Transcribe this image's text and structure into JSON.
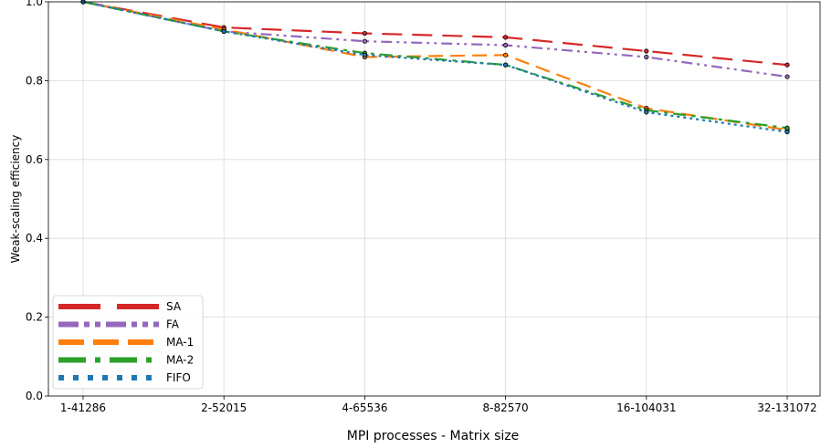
{
  "chart_data": {
    "type": "line",
    "title": "",
    "xlabel": "MPI processes - Matrix size",
    "ylabel": "Weak-scaling efficiency",
    "categories": [
      "1-41286",
      "2-52015",
      "4-65536",
      "8-82570",
      "16-104031",
      "32-131072"
    ],
    "yticks": [
      "0.0",
      "0.2",
      "0.4",
      "0.6",
      "0.8",
      "1.0"
    ],
    "ylim": [
      0,
      1.0
    ],
    "grid": true,
    "legend_position": "lower-left",
    "series": [
      {
        "name": "SA",
        "color": "#d62728",
        "dash": "long-dash",
        "values": [
          1.0,
          0.935,
          0.92,
          0.91,
          0.875,
          0.84
        ]
      },
      {
        "name": "FA",
        "color": "#9467bd",
        "dash": "dash-dot-dot",
        "values": [
          1.0,
          0.925,
          0.9,
          0.89,
          0.86,
          0.81
        ]
      },
      {
        "name": "MA-1",
        "color": "#ff7f0e",
        "dash": "dash",
        "values": [
          1.0,
          0.93,
          0.86,
          0.865,
          0.73,
          0.675
        ]
      },
      {
        "name": "MA-2",
        "color": "#2ca02c",
        "dash": "dash-dot",
        "values": [
          1.0,
          0.925,
          0.87,
          0.84,
          0.725,
          0.68
        ]
      },
      {
        "name": "FIFO",
        "color": "#1f77b4",
        "dash": "dotted",
        "values": [
          1.0,
          0.925,
          0.865,
          0.84,
          0.72,
          0.67
        ]
      }
    ]
  }
}
